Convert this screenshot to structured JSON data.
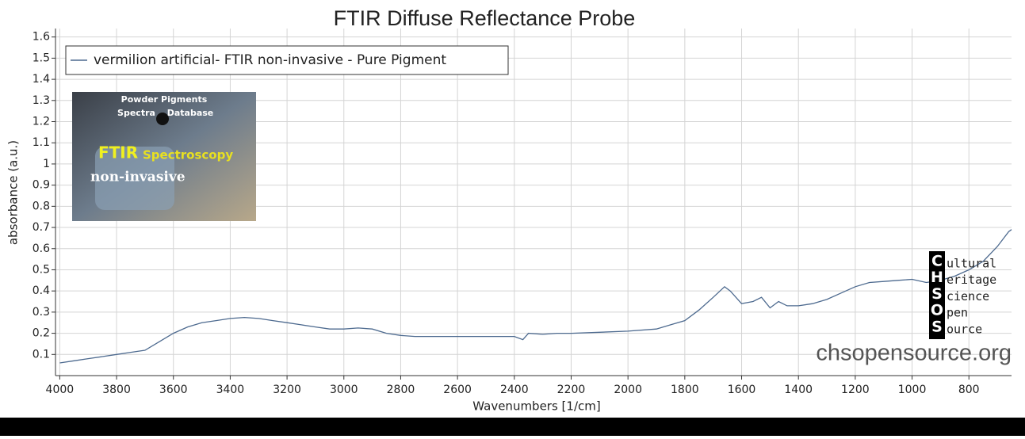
{
  "chart_data": {
    "type": "line",
    "title": "FTIR Diffuse Reflectance Probe",
    "xlabel": "Wavenumbers [1/cm]",
    "ylabel": "absorbance (a.u.)",
    "x": [
      4000,
      3950,
      3900,
      3850,
      3800,
      3750,
      3700,
      3650,
      3600,
      3550,
      3500,
      3450,
      3400,
      3350,
      3300,
      3250,
      3200,
      3150,
      3100,
      3050,
      3000,
      2950,
      2900,
      2850,
      2800,
      2750,
      2700,
      2600,
      2500,
      2400,
      2370,
      2350,
      2300,
      2250,
      2200,
      2100,
      2000,
      1900,
      1850,
      1800,
      1750,
      1700,
      1660,
      1640,
      1600,
      1560,
      1530,
      1500,
      1470,
      1440,
      1400,
      1350,
      1300,
      1250,
      1200,
      1150,
      1100,
      1050,
      1000,
      950,
      900,
      850,
      800,
      750,
      700,
      660,
      650
    ],
    "series": [
      {
        "name": "vermilion artificial- FTIR non-invasive - Pure Pigment",
        "color": "#4d6a8f",
        "values": [
          0.06,
          0.07,
          0.08,
          0.09,
          0.1,
          0.11,
          0.12,
          0.16,
          0.2,
          0.23,
          0.25,
          0.26,
          0.27,
          0.275,
          0.27,
          0.26,
          0.25,
          0.24,
          0.23,
          0.22,
          0.22,
          0.225,
          0.22,
          0.2,
          0.19,
          0.185,
          0.185,
          0.185,
          0.185,
          0.185,
          0.17,
          0.2,
          0.195,
          0.2,
          0.2,
          0.205,
          0.21,
          0.22,
          0.24,
          0.26,
          0.31,
          0.37,
          0.42,
          0.4,
          0.34,
          0.35,
          0.37,
          0.32,
          0.35,
          0.33,
          0.33,
          0.34,
          0.36,
          0.39,
          0.42,
          0.44,
          0.445,
          0.45,
          0.455,
          0.44,
          0.45,
          0.47,
          0.5,
          0.54,
          0.61,
          0.68,
          0.69
        ]
      }
    ],
    "xlim": [
      4015,
      650
    ],
    "ylim": [
      0,
      1.64
    ],
    "xticks": [
      4000,
      3800,
      3600,
      3400,
      3200,
      3000,
      2800,
      2600,
      2400,
      2200,
      2000,
      1800,
      1600,
      1400,
      1200,
      1000,
      800
    ],
    "yticks": [
      0.1,
      0.2,
      0.3,
      0.4,
      0.5,
      0.6,
      0.7,
      0.8,
      0.9,
      1,
      1.1,
      1.2,
      1.3,
      1.4,
      1.5,
      1.6
    ],
    "grid": true,
    "legend": "top-left"
  },
  "watermark": "chsopensource.org",
  "logo": {
    "letters": [
      "C",
      "H",
      "S",
      "O",
      "S"
    ],
    "words": [
      "ultural",
      "eritage",
      "cience",
      "pen",
      "ource"
    ]
  },
  "inset_image": {
    "texts": [
      "Powder Pigments",
      "Spectra",
      "Database",
      "FTIR",
      "Spectroscopy",
      "non-invasive"
    ]
  }
}
